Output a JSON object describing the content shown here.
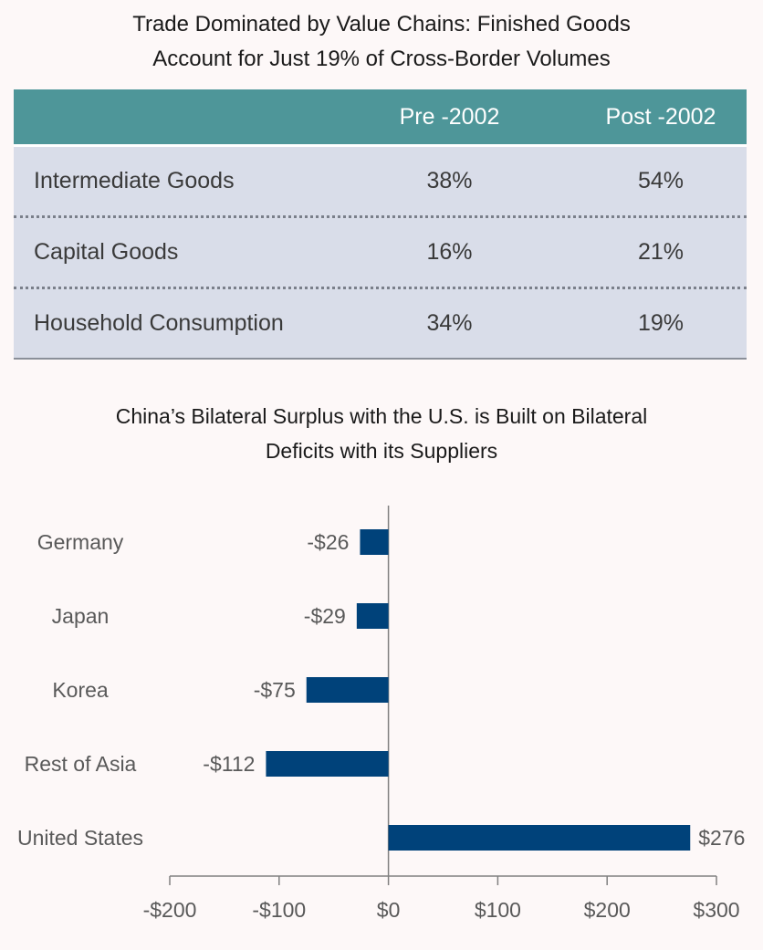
{
  "table": {
    "title_line1": "Trade Dominated by Value Chains: Finished Goods",
    "title_line2": "Account for Just 19% of Cross-Border Volumes",
    "header": [
      "",
      "Pre -2002",
      "Post -2002"
    ],
    "rows": [
      [
        "Intermediate Goods",
        "38%",
        "54%"
      ],
      [
        "Capital Goods",
        "16%",
        "21%"
      ],
      [
        "Household Consumption",
        "34%",
        "19%"
      ]
    ],
    "header_color": "#4e9699",
    "row_color": "#d9dde9"
  },
  "chart_data": {
    "type": "bar",
    "orientation": "horizontal",
    "title_line1": "China’s Bilateral Surplus with the U.S. is Built on Bilateral",
    "title_line2": "Deficits with its Suppliers",
    "categories": [
      "Germany",
      "Japan",
      "Korea",
      "Rest of Asia",
      "United States"
    ],
    "values": [
      -26,
      -29,
      -75,
      -112,
      276
    ],
    "value_labels": [
      "-$26",
      "-$29",
      "-$75",
      "-$112",
      "$276"
    ],
    "xlim": [
      -200,
      300
    ],
    "xticks": [
      -200,
      -100,
      0,
      100,
      200,
      300
    ],
    "xtick_labels": [
      "-$200",
      "-$100",
      "$0",
      "$100",
      "$200",
      "$300"
    ],
    "bar_color": "#00427a",
    "grid": false
  }
}
